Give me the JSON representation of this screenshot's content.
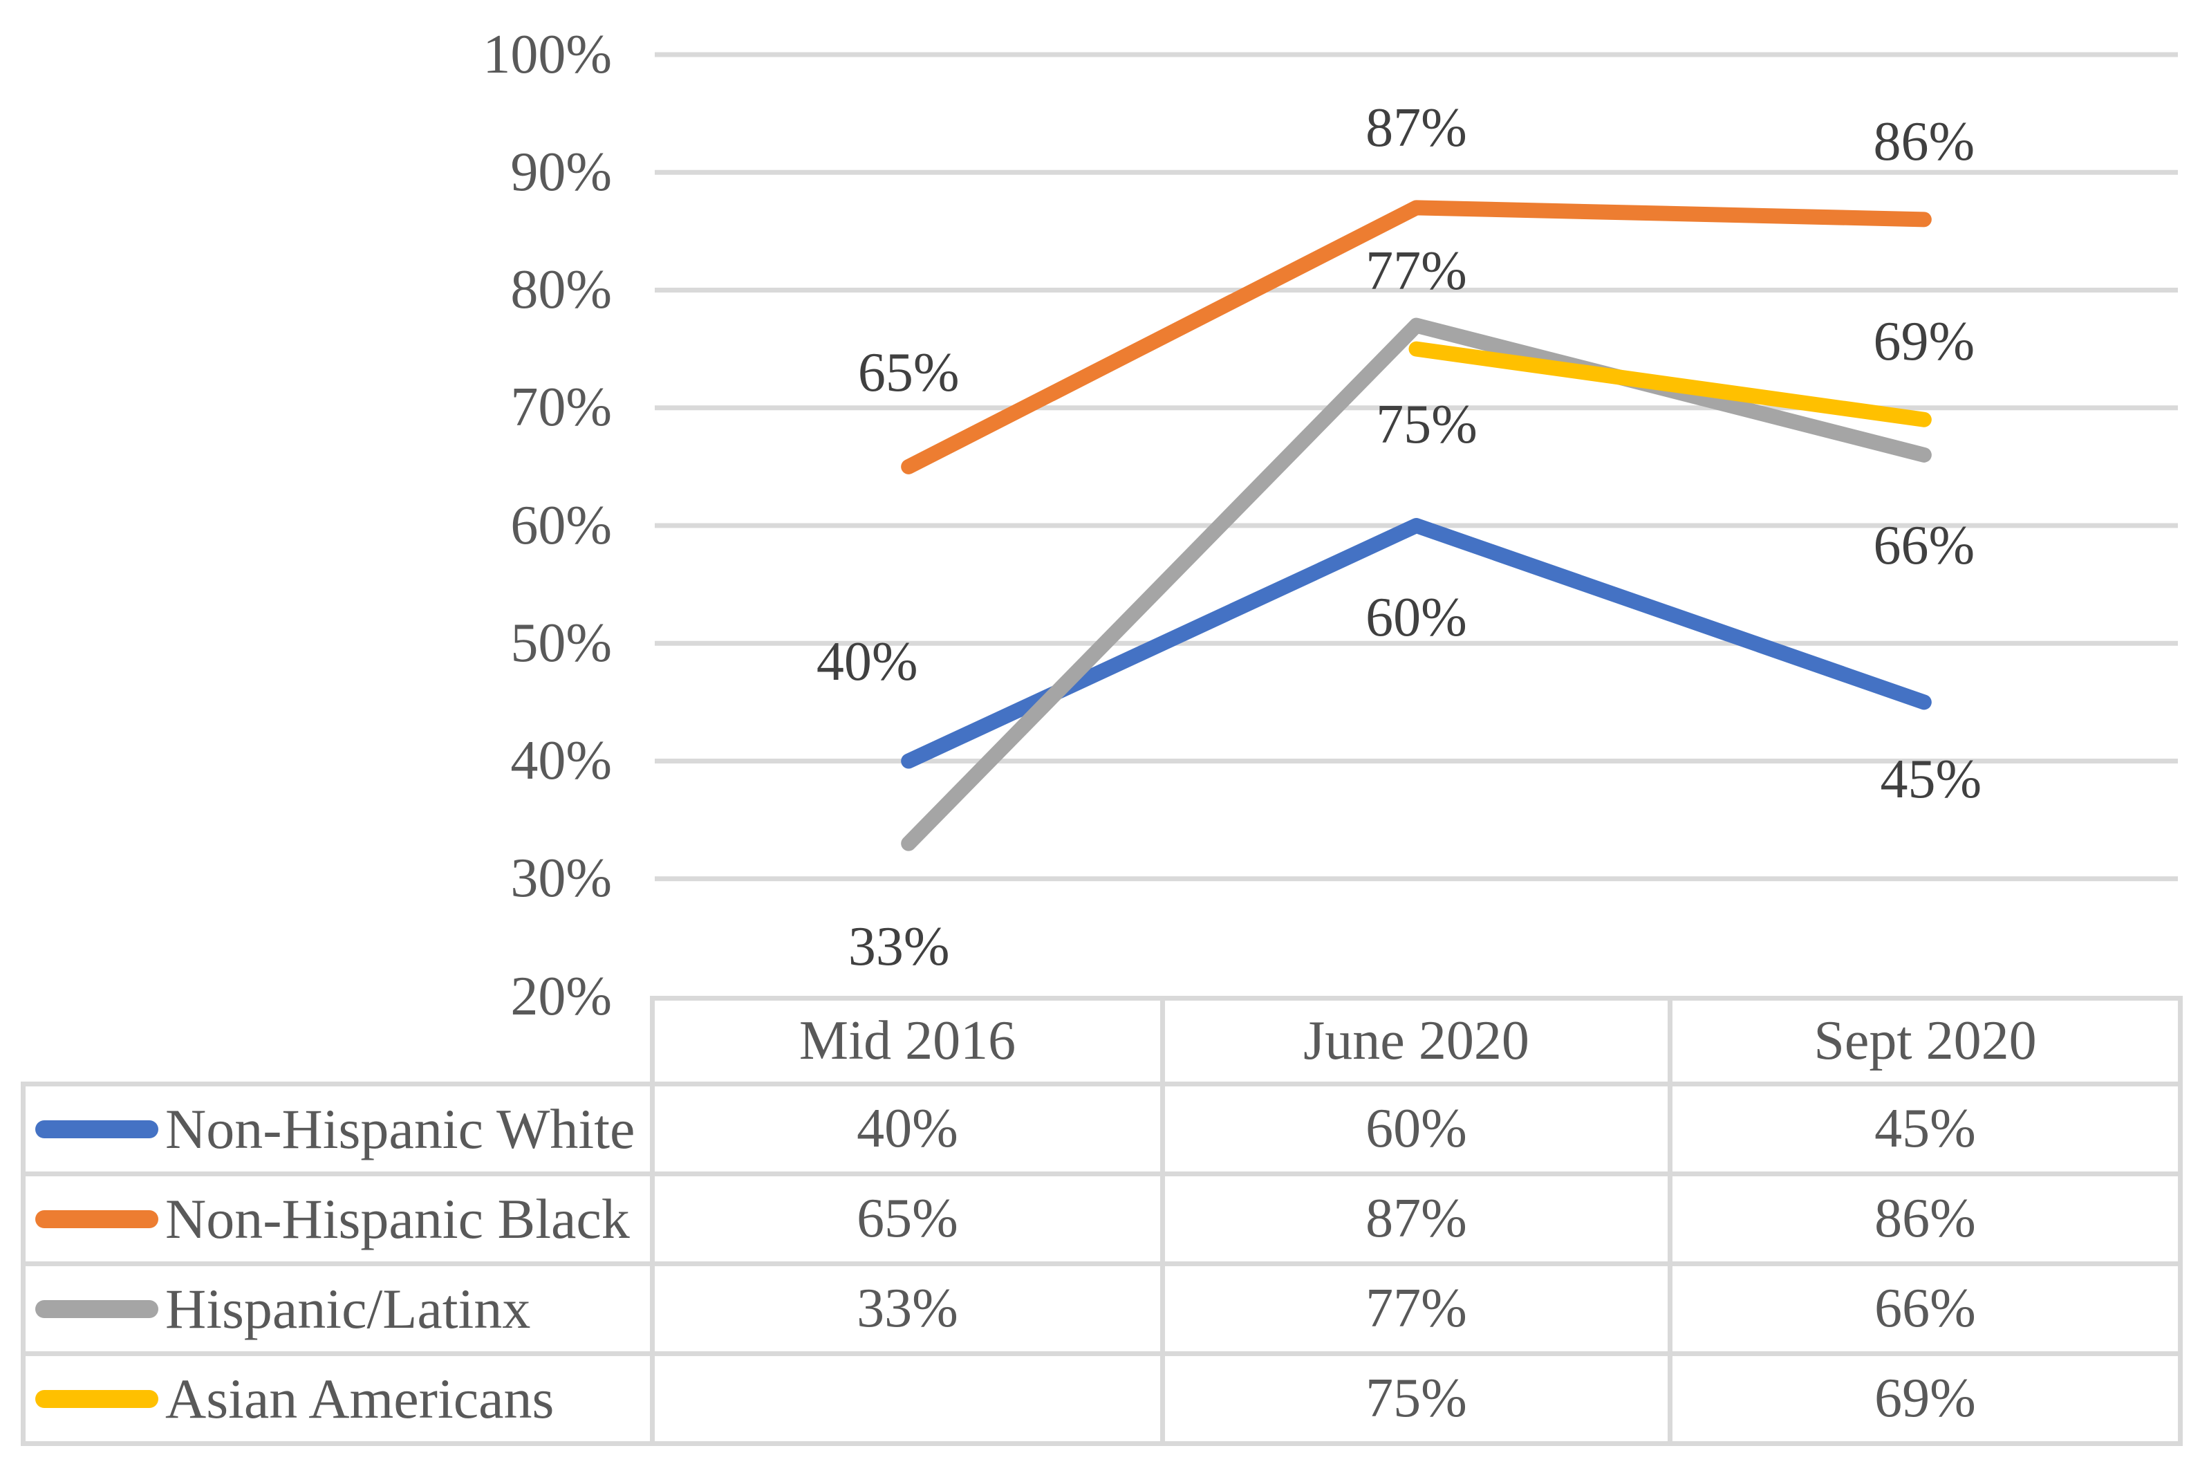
{
  "chart_data": {
    "type": "line",
    "categories": [
      "Mid 2016",
      "June 2020",
      "Sept 2020"
    ],
    "series": [
      {
        "name": "Non-Hispanic White",
        "color": "#4472C4",
        "values": [
          40,
          60,
          45
        ],
        "labels": [
          "40%",
          "60%",
          "45%"
        ],
        "label_offsets": [
          [
            -60,
            -143
          ],
          [
            0,
            133
          ],
          [
            10,
            112
          ]
        ]
      },
      {
        "name": "Non-Hispanic Black",
        "color": "#ED7D31",
        "values": [
          65,
          87,
          86
        ],
        "labels": [
          "65%",
          "87%",
          "86%"
        ],
        "label_offsets": [
          [
            0,
            -135
          ],
          [
            0,
            -115
          ],
          [
            0,
            -112
          ]
        ]
      },
      {
        "name": "Hispanic/Latinx",
        "color": "#A5A5A5",
        "values": [
          33,
          77,
          66
        ],
        "labels": [
          "33%",
          "77%",
          "66%"
        ],
        "label_offsets": [
          [
            -14,
            150
          ],
          [
            0,
            -78
          ],
          [
            0,
            132
          ]
        ]
      },
      {
        "name": "Asian Americans",
        "color": "#FFC000",
        "values": [
          null,
          75,
          69
        ],
        "labels": [
          null,
          "75%",
          "69%"
        ],
        "label_offsets": [
          null,
          [
            15,
            110
          ],
          [
            0,
            -112
          ]
        ]
      }
    ],
    "ylim": [
      20,
      100
    ],
    "ytick_step": 10,
    "unit": "%",
    "y_tick_labels": [
      "100%",
      "90%",
      "80%",
      "70%",
      "60%",
      "50%",
      "40%",
      "30%",
      "20%"
    ],
    "grid": true,
    "legend_position": "table-left",
    "title": "",
    "xlabel": "",
    "ylabel": ""
  },
  "style": {
    "gridline_color": "#D9D9D9",
    "table_border_color": "#D9D9D9",
    "axis_text_color": "#595959",
    "data_label_color": "#404040",
    "background": "#ffffff"
  }
}
